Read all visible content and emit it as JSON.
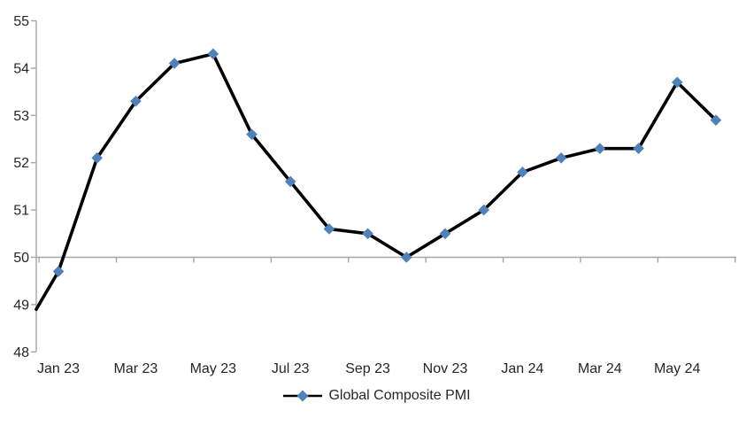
{
  "chart_data": {
    "type": "line",
    "title": "",
    "legend": {
      "label": "Global Composite PMI",
      "position": "bottom-center"
    },
    "categories": [
      "Jan 23",
      "Feb 23",
      "Mar 23",
      "Apr 23",
      "May 23",
      "Jun 23",
      "Jul 23",
      "Aug 23",
      "Sep 23",
      "Oct 23",
      "Nov 23",
      "Dec 23",
      "Jan 24",
      "Feb 24",
      "Mar 24",
      "Apr 24",
      "May 24",
      "Jun 24"
    ],
    "series": [
      {
        "name": "Global Composite PMI",
        "values": [
          49.7,
          52.1,
          53.3,
          54.1,
          54.3,
          52.6,
          51.6,
          50.6,
          50.5,
          50.0,
          50.5,
          51.0,
          51.8,
          52.1,
          52.3,
          52.3,
          53.7,
          52.9
        ]
      }
    ],
    "left_edge_entry_value": 48.9,
    "x_tick_labels": [
      "Jan 23",
      "Mar 23",
      "May 23",
      "Jul 23",
      "Sep 23",
      "Nov 23",
      "Jan 24",
      "Mar 24",
      "May 24"
    ],
    "y_ticks": [
      "48",
      "49",
      "50",
      "51",
      "52",
      "53",
      "54",
      "55"
    ],
    "ylim": [
      48,
      55
    ],
    "x_axis_cross_value": 50,
    "grid": false,
    "marker_shape": "diamond",
    "line_style": "solid",
    "colors": {
      "line": "#000000",
      "marker": "#4F81BD",
      "axis": "#A6A6A6",
      "label_text": "#262626"
    }
  }
}
